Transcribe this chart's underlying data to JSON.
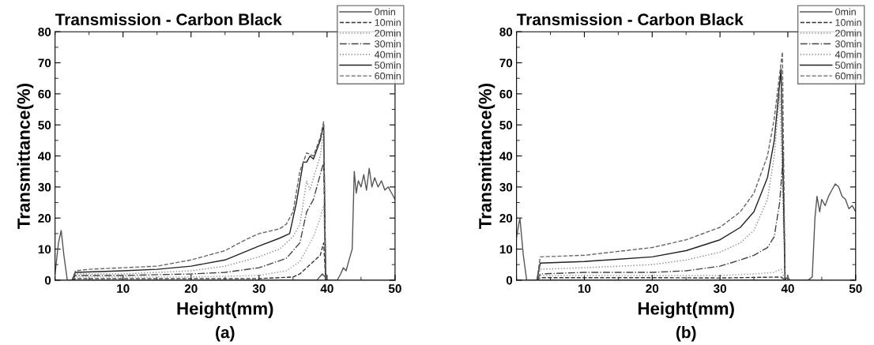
{
  "chart_data": [
    {
      "type": "line",
      "title": "Transmission - Carbon Black",
      "xlabel": "Height(mm)",
      "ylabel": "Transmittance(%)",
      "annotations": [
        "(a)"
      ],
      "xlim": [
        0,
        50
      ],
      "xticks": [
        10,
        20,
        30,
        40,
        50
      ],
      "ylim": [
        0,
        80
      ],
      "yticks": [
        0,
        10,
        20,
        30,
        40,
        50,
        60,
        70,
        80
      ],
      "grid": false,
      "legend": "top right",
      "series": [
        {
          "name": "0min",
          "color": "#555555",
          "line_style": "solid",
          "x": [
            0,
            0.5,
            0.9,
            1.3,
            1.8,
            2.5,
            10,
            20,
            30,
            38.5,
            39.3,
            39.7,
            40,
            41.5,
            42,
            42.4,
            42.8,
            43.3,
            43.7,
            44,
            44.3,
            44.6,
            45,
            45.4,
            45.8,
            46.2,
            46.6,
            47,
            47.5,
            48,
            48.5,
            49,
            49.5,
            50
          ],
          "values": [
            2,
            12,
            16,
            8,
            0,
            0,
            0,
            0,
            0,
            0,
            2,
            1,
            0,
            0,
            2,
            4,
            3,
            7,
            10,
            35,
            28,
            32,
            30,
            34,
            29,
            36,
            30,
            33,
            30,
            32,
            29,
            30,
            28,
            26
          ]
        },
        {
          "name": "10min",
          "color": "#333333",
          "line_style": "dashed",
          "x": [
            2.5,
            3,
            10,
            20,
            30,
            35,
            36,
            37,
            38,
            39,
            39.5,
            39.8
          ],
          "values": [
            0,
            0.5,
            0.5,
            0.5,
            0.5,
            1,
            2,
            4,
            6,
            8,
            12,
            0
          ]
        },
        {
          "name": "20min",
          "color": "#999999",
          "line_style": "dotted",
          "x": [
            2.5,
            3,
            10,
            20,
            30,
            34,
            36,
            37,
            38,
            39,
            39.5,
            39.8
          ],
          "values": [
            0,
            1,
            1,
            1,
            1.5,
            3,
            6,
            10,
            14,
            20,
            24,
            0
          ]
        },
        {
          "name": "30min",
          "color": "#444444",
          "line_style": "dashdot",
          "x": [
            2.5,
            3,
            10,
            20,
            25,
            30,
            34,
            36,
            37,
            38,
            39,
            39.5,
            39.8
          ],
          "values": [
            0,
            1.5,
            1.5,
            2,
            2.5,
            4,
            7,
            12,
            22,
            26,
            34,
            38,
            0
          ]
        },
        {
          "name": "40min",
          "color": "#888888",
          "line_style": "dotted",
          "x": [
            2.5,
            3,
            10,
            15,
            20,
            25,
            30,
            33,
            35,
            36,
            37,
            37.5,
            38,
            39,
            39.5,
            39.8
          ],
          "values": [
            0,
            2,
            2,
            2.5,
            3,
            4.5,
            7.5,
            10,
            14,
            18,
            32,
            29,
            33,
            40,
            48,
            0
          ]
        },
        {
          "name": "50min",
          "color": "#222222",
          "line_style": "solid",
          "x": [
            2.5,
            3,
            10,
            15,
            20,
            25,
            30,
            33,
            34.5,
            35.5,
            36.5,
            37,
            37.5,
            38,
            39,
            39.5,
            39.8
          ],
          "values": [
            0,
            2.5,
            3,
            3.5,
            4.5,
            6.5,
            11,
            13.5,
            15,
            25,
            38,
            38,
            40,
            39,
            45,
            50,
            0
          ]
        },
        {
          "name": "60min",
          "color": "#666666",
          "line_style": "dashed",
          "x": [
            2.5,
            3,
            5,
            10,
            15,
            20,
            25,
            28,
            30,
            33,
            34,
            35,
            36,
            37,
            38,
            39,
            39.5,
            39.8
          ],
          "values": [
            0,
            3,
            3.5,
            4,
            4.5,
            6.5,
            9.5,
            13,
            15,
            16.5,
            18,
            22,
            35,
            41,
            40,
            46,
            51,
            0
          ]
        }
      ]
    },
    {
      "type": "line",
      "title": "Transmission - Carbon Black",
      "xlabel": "Height(mm)",
      "ylabel": "Transmittance(%)",
      "annotations": [
        "(b)"
      ],
      "xlim": [
        0,
        50
      ],
      "xticks": [
        10,
        20,
        30,
        40,
        50
      ],
      "ylim": [
        0,
        80
      ],
      "yticks": [
        0,
        10,
        20,
        30,
        40,
        50,
        60,
        70,
        80
      ],
      "grid": false,
      "legend": "top right",
      "series": [
        {
          "name": "0min",
          "color": "#555555",
          "line_style": "solid",
          "x": [
            0,
            0.5,
            1,
            1.5,
            3,
            10,
            20,
            30,
            39.5,
            40,
            40.3,
            43,
            43.6,
            44,
            44.3,
            44.7,
            45,
            45.5,
            46,
            46.5,
            47,
            47.5,
            48,
            48.5,
            49,
            49.5,
            50
          ],
          "values": [
            14,
            20,
            8,
            0,
            0,
            0,
            0,
            0,
            0,
            1,
            0,
            0,
            1,
            20,
            27,
            22,
            26,
            24,
            27,
            29,
            31,
            30,
            27,
            26,
            23,
            24,
            22
          ]
        },
        {
          "name": "10min",
          "color": "#333333",
          "line_style": "dashed",
          "x": [
            3,
            3.5,
            10,
            20,
            30,
            39,
            39.6
          ],
          "values": [
            0,
            0.8,
            0.8,
            0.8,
            0.7,
            1,
            0
          ]
        },
        {
          "name": "20min",
          "color": "#999999",
          "line_style": "dotted",
          "x": [
            3,
            3.5,
            10,
            20,
            30,
            35,
            38,
            39,
            39.6
          ],
          "values": [
            0,
            1.5,
            1.5,
            1.5,
            1.5,
            2,
            2.5,
            3.5,
            0
          ]
        },
        {
          "name": "30min",
          "color": "#444444",
          "line_style": "dashdot",
          "x": [
            3,
            3.5,
            10,
            20,
            25,
            30,
            33,
            35,
            37,
            38,
            38.8,
            39.3,
            39.6
          ],
          "values": [
            0,
            2,
            2.5,
            2.5,
            3,
            4.5,
            6.5,
            8,
            10.5,
            14,
            25,
            40,
            0
          ]
        },
        {
          "name": "40min",
          "color": "#888888",
          "line_style": "dotted",
          "x": [
            3,
            3.5,
            10,
            20,
            25,
            30,
            33,
            35,
            37,
            38,
            38.8,
            39.6
          ],
          "values": [
            0,
            3.5,
            4,
            5,
            6.5,
            9,
            12,
            16,
            26,
            40,
            60,
            0
          ]
        },
        {
          "name": "50min",
          "color": "#222222",
          "line_style": "solid",
          "x": [
            3,
            3.5,
            10,
            20,
            25,
            30,
            33,
            35,
            37,
            38,
            39,
            39.6
          ],
          "values": [
            0,
            5.5,
            6,
            7.5,
            9.5,
            13,
            17,
            22,
            33,
            45,
            68,
            0
          ]
        },
        {
          "name": "60min",
          "color": "#666666",
          "line_style": "dashed",
          "x": [
            3,
            3.5,
            10,
            20,
            25,
            30,
            33,
            35,
            37,
            38,
            39,
            39.2,
            39.6
          ],
          "values": [
            0,
            7.5,
            8,
            10.5,
            13,
            17,
            22,
            28,
            40,
            52,
            70,
            73.5,
            0
          ]
        }
      ]
    }
  ]
}
